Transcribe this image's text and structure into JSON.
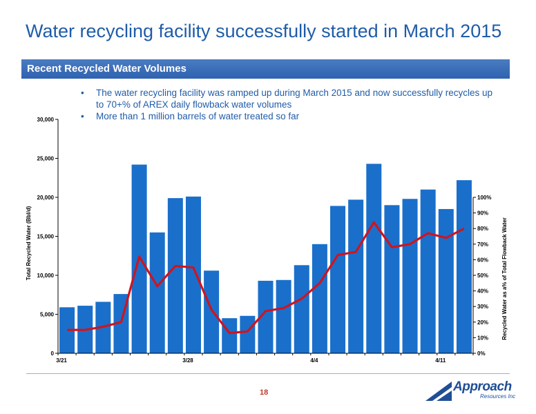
{
  "slide": {
    "title": "Water recycling facility successfully started in March 2015",
    "section_header": "Recent Recycled Water Volumes",
    "bullets": [
      "The water recycling facility was ramped up during March 2015 and now successfully recycles up to 70+% of AREX daily flowback water volumes",
      "More than 1 million barrels of water treated so far"
    ],
    "page_number": "18",
    "logo": {
      "name": "Approach",
      "sub": "Resources Inc",
      "color": "#1f4e96"
    }
  },
  "chart_data": {
    "type": "bar",
    "title": "",
    "xlabel": "",
    "ylabel": "Total Recycled Water (Bbl/d)",
    "y2label": "Recycled Water as a% of Total Flowback Water",
    "ylim": [
      0,
      30000
    ],
    "y2lim": [
      0,
      1.0
    ],
    "yticks": [
      "0",
      "5,000",
      "10,000",
      "15,000",
      "20,000",
      "25,000",
      "30,000"
    ],
    "y2ticks": [
      "0%",
      "10%",
      "20%",
      "30%",
      "40%",
      "50%",
      "60%",
      "70%",
      "80%",
      "90%",
      "100%"
    ],
    "xtick_labels": [
      {
        "index": 0,
        "label": "3/21"
      },
      {
        "index": 7,
        "label": "3/28"
      },
      {
        "index": 14,
        "label": "4/4"
      },
      {
        "index": 21,
        "label": "4/11"
      }
    ],
    "series": [
      {
        "type": "bar",
        "axis": "left",
        "color": "#1a6fcb",
        "values": [
          5900,
          6100,
          6600,
          7600,
          24200,
          15500,
          19900,
          20100,
          10600,
          4500,
          4800,
          9300,
          9400,
          11300,
          14000,
          18900,
          19700,
          24300,
          19000,
          19800,
          21000,
          18500,
          22200
        ]
      },
      {
        "type": "line",
        "axis": "right",
        "color": "#d0141e",
        "values": [
          0.15,
          0.15,
          0.17,
          0.2,
          0.62,
          0.43,
          0.56,
          0.55,
          0.28,
          0.13,
          0.14,
          0.27,
          0.29,
          0.35,
          0.45,
          0.63,
          0.65,
          0.84,
          0.68,
          0.7,
          0.77,
          0.74,
          0.8
        ]
      }
    ],
    "grid": false
  }
}
